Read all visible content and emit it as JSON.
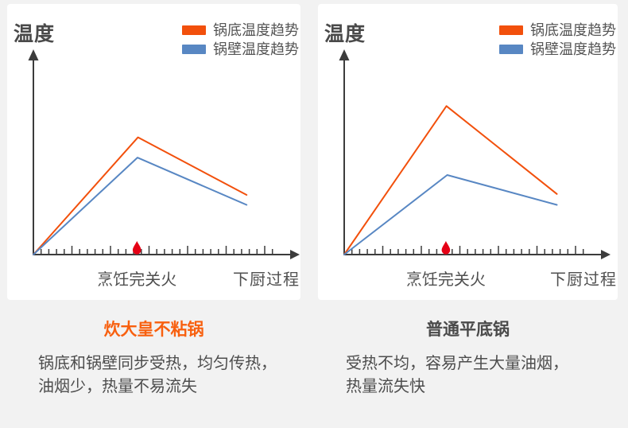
{
  "colors": {
    "background": "#f2f2f2",
    "card": "#ffffff",
    "pot_bottom_orange": "#f2500c",
    "pot_wall_blue": "#5887c3",
    "axis_gray": "#3c3c3c",
    "droplet_red": "#e50015",
    "heading_orange": "#f8600f",
    "heading_gray": "#4a4a4a",
    "body_text": "#4d4d4d"
  },
  "chart_data": [
    {
      "type": "line",
      "title": "炊大皇不粘锅",
      "ylabel": "温度",
      "xlabel": "下厨过程",
      "x_range": [
        0,
        1
      ],
      "y_range": [
        0,
        1
      ],
      "grid": false,
      "legend_position": "top-right",
      "event_marker": {
        "label": "烹饪完关火",
        "x": 0.39,
        "icon": "red-droplet"
      },
      "series": [
        {
          "name": "锅底温度趋势",
          "color": "#f2500c",
          "points": [
            [
              0,
              0
            ],
            [
              0.394,
              0.578
            ],
            [
              0.803,
              0.294
            ]
          ]
        },
        {
          "name": "锅壁温度趋势",
          "color": "#5887c3",
          "points": [
            [
              0,
              0
            ],
            [
              0.392,
              0.478
            ],
            [
              0.803,
              0.245
            ]
          ]
        }
      ]
    },
    {
      "type": "line",
      "title": "普通平底锅",
      "ylabel": "温度",
      "xlabel": "下厨过程",
      "x_range": [
        0,
        1
      ],
      "y_range": [
        0,
        1
      ],
      "grid": false,
      "legend_position": "top-right",
      "event_marker": {
        "label": "烹饪完关火",
        "x": 0.383,
        "icon": "red-droplet"
      },
      "series": [
        {
          "name": "锅底温度趋势",
          "color": "#f2500c",
          "points": [
            [
              0,
              0
            ],
            [
              0.385,
              0.732
            ],
            [
              0.801,
              0.299
            ]
          ]
        },
        {
          "name": "锅壁温度趋势",
          "color": "#5887c3",
          "points": [
            [
              0,
              0
            ],
            [
              0.388,
              0.392
            ],
            [
              0.801,
              0.245
            ]
          ]
        }
      ]
    }
  ],
  "captions": [
    {
      "title": "炊大皇不粘锅",
      "title_color": "#f8600f",
      "lines": [
        "锅底和锅壁同步受热，均匀传热，",
        "油烟少，热量不易流失"
      ]
    },
    {
      "title": "普通平底锅",
      "title_color": "#4a4a4a",
      "lines": [
        "受热不均，容易产生大量油烟，",
        "热量流失快"
      ]
    }
  ]
}
